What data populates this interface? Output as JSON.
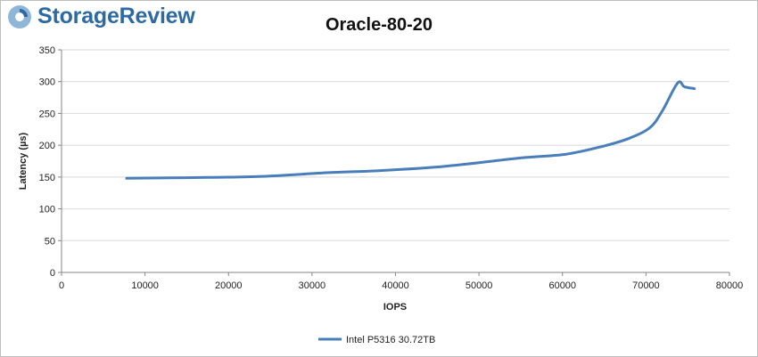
{
  "brand": {
    "name": "StorageReview",
    "color": "#2d6aa3"
  },
  "chart_data": {
    "type": "line",
    "title": "Oracle-80-20",
    "xlabel": "IOPS",
    "ylabel": "Latency (µs)",
    "xlim": [
      0,
      80000
    ],
    "ylim": [
      0,
      350
    ],
    "xticks": [
      0,
      10000,
      20000,
      30000,
      40000,
      50000,
      60000,
      70000,
      80000
    ],
    "yticks": [
      0,
      50,
      100,
      150,
      200,
      250,
      300,
      350
    ],
    "grid": true,
    "legend": "bottom",
    "series": [
      {
        "name": "Intel P5316 30.72TB",
        "color": "#4a7ebb",
        "x": [
          7800,
          15000,
          24000,
          32000,
          38000,
          46000,
          55000,
          60500,
          65000,
          68000,
          70500,
          72000,
          73800,
          74600,
          75800
        ],
        "y": [
          148,
          149,
          151,
          157,
          160,
          167,
          180,
          186,
          199,
          211,
          228,
          255,
          298,
          292,
          289
        ]
      }
    ]
  }
}
